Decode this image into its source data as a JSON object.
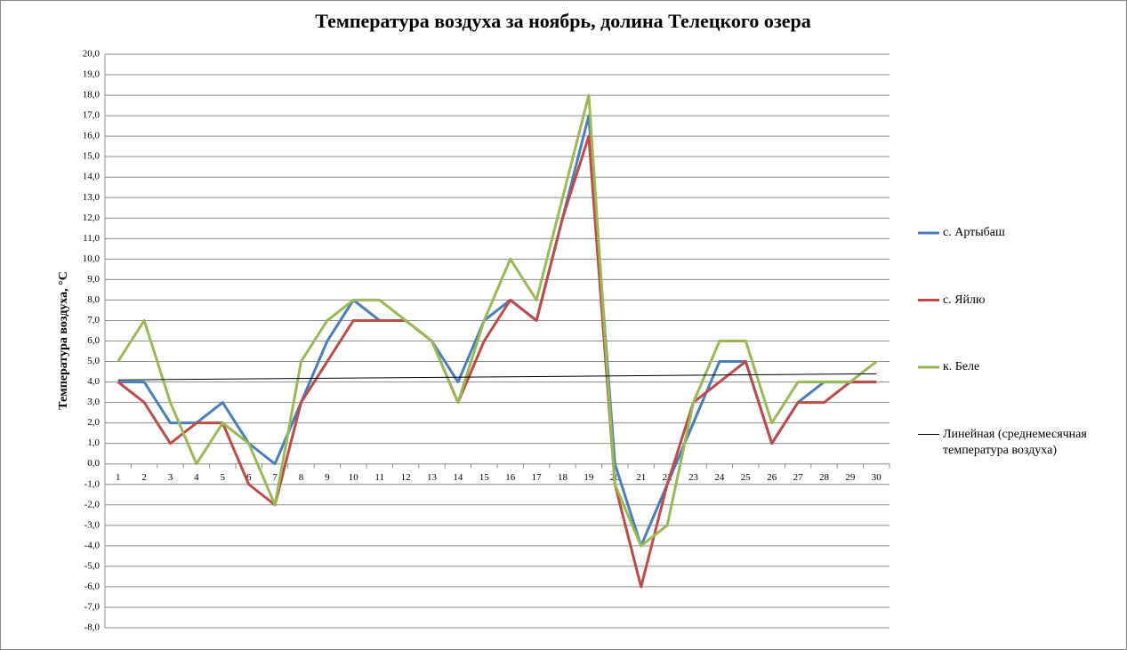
{
  "chart_data": {
    "type": "line",
    "title": "Температура воздуха за ноябрь, долина Телецкого озера",
    "y_label": "Температура воздуха, °С",
    "categories": [
      "1",
      "2",
      "3",
      "4",
      "5",
      "6",
      "7",
      "8",
      "9",
      "10",
      "11",
      "12",
      "13",
      "14",
      "15",
      "16",
      "17",
      "18",
      "19",
      "20",
      "21",
      "22",
      "23",
      "24",
      "25",
      "26",
      "27",
      "28",
      "29",
      "30"
    ],
    "series": [
      {
        "name": "с. Артыбаш",
        "color": "#4a7ebb",
        "values": [
          4,
          4,
          2,
          2,
          3,
          1,
          0,
          3,
          6,
          8,
          7,
          7,
          6,
          4,
          7,
          8,
          7,
          12,
          17,
          0,
          -4,
          -1,
          2,
          5,
          5,
          1,
          3,
          4,
          4,
          4
        ]
      },
      {
        "name": "с. Яйлю",
        "color": "#be4b48",
        "values": [
          4,
          3,
          1,
          2,
          2,
          -1,
          -2,
          3,
          5,
          7,
          7,
          7,
          6,
          3,
          6,
          8,
          7,
          12,
          16,
          -1,
          -6,
          -1,
          3,
          4,
          5,
          1,
          3,
          3,
          4,
          4
        ]
      },
      {
        "name": "к. Беле",
        "color": "#98b954",
        "values": [
          5,
          7,
          3,
          0,
          2,
          1,
          -2,
          5,
          7,
          8,
          8,
          7,
          6,
          3,
          7,
          10,
          8,
          13,
          18,
          -1,
          -4,
          -3,
          3,
          6,
          6,
          2,
          4,
          4,
          4,
          5
        ]
      }
    ],
    "trendline": {
      "name": "Линейная (среднемесячная температура воздуха)",
      "color": "#000000",
      "values": [
        4.1,
        4.4
      ]
    },
    "ylim": [
      -8,
      20
    ],
    "yticks": [
      {
        "value": -8,
        "label": "-8,0"
      },
      {
        "value": -7,
        "label": "-7,0"
      },
      {
        "value": -6,
        "label": "-6,0"
      },
      {
        "value": -5,
        "label": "-5,0"
      },
      {
        "value": -4,
        "label": "-4,0"
      },
      {
        "value": -3,
        "label": "-3,0"
      },
      {
        "value": -2,
        "label": "-2,0"
      },
      {
        "value": -1,
        "label": "-1,0"
      },
      {
        "value": 0,
        "label": "0,0"
      },
      {
        "value": 1,
        "label": "1,0"
      },
      {
        "value": 2,
        "label": "2,0"
      },
      {
        "value": 3,
        "label": "3,0"
      },
      {
        "value": 4,
        "label": "4,0"
      },
      {
        "value": 5,
        "label": "5,0"
      },
      {
        "value": 6,
        "label": "6,0"
      },
      {
        "value": 7,
        "label": "7,0"
      },
      {
        "value": 8,
        "label": "8,0"
      },
      {
        "value": 9,
        "label": "9,0"
      },
      {
        "value": 10,
        "label": "10,0"
      },
      {
        "value": 11,
        "label": "11,0"
      },
      {
        "value": 12,
        "label": "12,0"
      },
      {
        "value": 13,
        "label": "13,0"
      },
      {
        "value": 14,
        "label": "14,0"
      },
      {
        "value": 15,
        "label": "15,0"
      },
      {
        "value": 16,
        "label": "16,0"
      },
      {
        "value": 17,
        "label": "17,0"
      },
      {
        "value": 18,
        "label": "18,0"
      },
      {
        "value": 19,
        "label": "19,0"
      },
      {
        "value": 20,
        "label": "20,0"
      }
    ],
    "grid": true
  }
}
